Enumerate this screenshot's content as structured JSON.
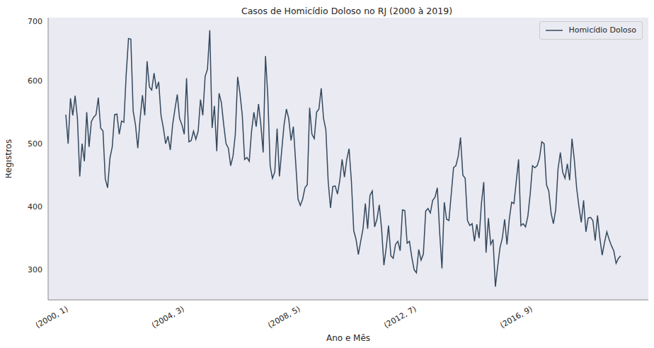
{
  "chart_data": {
    "type": "line",
    "title": "Casos de Homicídio Doloso no RJ (2000 à 2019)",
    "x_label": "Ano e Mês",
    "y_label": "Registros",
    "categories": [
      "(2000, 1)",
      null,
      null,
      null,
      null,
      null,
      null,
      null,
      null,
      null,
      null,
      null,
      null,
      null,
      null,
      null,
      null,
      null,
      null,
      null,
      null,
      null,
      null,
      null,
      null,
      null,
      null,
      null,
      null,
      null,
      null,
      null,
      null,
      null,
      null,
      null,
      null,
      null,
      null,
      null,
      null,
      null,
      null,
      null,
      null,
      null,
      null,
      null,
      null,
      null,
      "(2004, 3)",
      null,
      null,
      null,
      null,
      null,
      null,
      null,
      null,
      null,
      null,
      null,
      null,
      null,
      null,
      null,
      null,
      null,
      null,
      null,
      null,
      null,
      null,
      null,
      null,
      null,
      null,
      null,
      null,
      null,
      null,
      null,
      null,
      null,
      null,
      null,
      null,
      null,
      null,
      null,
      null,
      null,
      null,
      null,
      null,
      null,
      null,
      null,
      null,
      null,
      "(2008, 5)",
      null,
      null,
      null,
      null,
      null,
      null,
      null,
      null,
      null,
      null,
      null,
      null,
      null,
      null,
      null,
      null,
      null,
      null,
      null,
      null,
      null,
      null,
      null,
      null,
      null,
      null,
      null,
      null,
      null,
      null,
      null,
      null,
      null,
      null,
      null,
      null,
      null,
      null,
      null,
      null,
      null,
      null,
      null,
      null,
      null,
      null,
      null,
      null,
      null,
      "(2012, 7)",
      null,
      null,
      null,
      null,
      null,
      null,
      null,
      null,
      null,
      null,
      null,
      null,
      null,
      null,
      null,
      null,
      null,
      null,
      null,
      null,
      null,
      null,
      null,
      null,
      null,
      null,
      null,
      null,
      null,
      null,
      null,
      null,
      null,
      null,
      null,
      null,
      null,
      null,
      null,
      null,
      null,
      null,
      null,
      null,
      null,
      null,
      null,
      null,
      null,
      "(2016, 9)",
      null,
      null,
      null,
      null,
      null,
      null,
      null,
      null,
      null,
      null,
      null,
      null,
      null,
      null,
      null,
      null,
      null,
      null,
      null,
      null,
      null,
      null,
      null,
      null,
      null,
      null,
      null,
      null,
      null,
      null,
      null,
      null,
      null,
      null,
      null,
      null,
      null,
      null,
      null
    ],
    "series": [
      {
        "name": "Homicídio Doloso",
        "color": "#34495e",
        "values": [
          546,
          500,
          572,
          545,
          576,
          540,
          448,
          500,
          472,
          550,
          495,
          535,
          542,
          546,
          573,
          525,
          520,
          444,
          430,
          477,
          495,
          546,
          547,
          515,
          536,
          534,
          610,
          667,
          666,
          552,
          530,
          493,
          540,
          577,
          545,
          631,
          590,
          585,
          612,
          587,
          598,
          545,
          525,
          500,
          512,
          490,
          530,
          555,
          578,
          540,
          530,
          515,
          604,
          503,
          505,
          520,
          507,
          520,
          570,
          545,
          607,
          618,
          680,
          525,
          560,
          488,
          580,
          565,
          530,
          500,
          493,
          465,
          480,
          515,
          606,
          580,
          545,
          475,
          478,
          472,
          520,
          550,
          527,
          563,
          530,
          486,
          639,
          575,
          465,
          445,
          455,
          524,
          448,
          490,
          530,
          555,
          540,
          505,
          527,
          470,
          412,
          402,
          412,
          430,
          435,
          557,
          515,
          508,
          550,
          555,
          588,
          540,
          522,
          440,
          398,
          432,
          433,
          420,
          442,
          475,
          447,
          475,
          492,
          440,
          362,
          348,
          324,
          345,
          365,
          405,
          365,
          418,
          425,
          368,
          380,
          403,
          365,
          307,
          335,
          370,
          322,
          318,
          340,
          345,
          330,
          395,
          394,
          342,
          345,
          320,
          300,
          295,
          332,
          315,
          325,
          393,
          397,
          390,
          410,
          415,
          430,
          360,
          302,
          407,
          380,
          378,
          420,
          462,
          465,
          480,
          510,
          450,
          445,
          378,
          370,
          373,
          345,
          372,
          350,
          405,
          439,
          327,
          382,
          340,
          348,
          273,
          305,
          335,
          350,
          380,
          340,
          380,
          407,
          405,
          440,
          475,
          370,
          373,
          368,
          385,
          420,
          465,
          462,
          465,
          477,
          503,
          500,
          435,
          425,
          390,
          373,
          395,
          460,
          486,
          455,
          445,
          468,
          442,
          508,
          475,
          430,
          400,
          375,
          410,
          360,
          382,
          383,
          378,
          346,
          386,
          350,
          323,
          343,
          360,
          348,
          338,
          330,
          310,
          318,
          322
        ]
      }
    ],
    "ylim": [
      252,
      700
    ],
    "yticks": [
      300,
      400,
      500,
      600,
      700
    ],
    "grid": false,
    "legend": "upper right"
  }
}
